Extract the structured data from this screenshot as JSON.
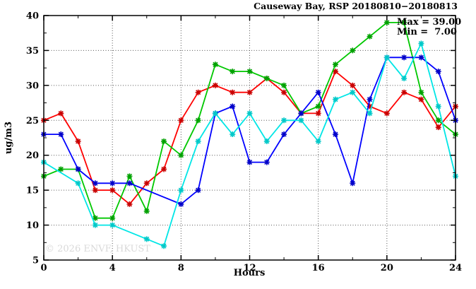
{
  "chart_data": {
    "type": "line",
    "title": "Causeway Bay, RSP 20180810−20180813",
    "annotations": {
      "max_label": "Max = 39.00",
      "min_label": "Min =  7.00",
      "max_value": 39.0,
      "min_value": 7.0
    },
    "watermark": "© 2026 ENVF, HKUST",
    "xlabel": "Hours",
    "ylabel": "ug/m3",
    "xlim": [
      0,
      24
    ],
    "ylim": [
      5,
      40
    ],
    "x_major_ticks": [
      0,
      4,
      8,
      12,
      16,
      20,
      24
    ],
    "x_minor_ticks": [
      2,
      6,
      10,
      14,
      18,
      22
    ],
    "y_major_ticks": [
      5,
      10,
      15,
      20,
      25,
      30,
      35,
      40
    ],
    "y_minor_ticks": [
      7.5,
      12.5,
      17.5,
      22.5,
      27.5,
      32.5,
      37.5
    ],
    "grid_x": [
      4,
      8,
      12,
      16,
      20
    ],
    "grid_y": [
      10,
      15,
      20,
      25,
      30,
      35
    ],
    "grid_on": true,
    "legend": "none",
    "x": [
      0,
      1,
      2,
      3,
      4,
      5,
      6,
      7,
      8,
      9,
      10,
      11,
      12,
      13,
      14,
      15,
      16,
      17,
      18,
      19,
      20,
      21,
      22,
      23,
      24
    ],
    "series": [
      {
        "name": "rsp-day-1-red",
        "line_color": "#ff0000",
        "marker_color": "#c80000",
        "values": [
          25,
          26,
          22,
          15,
          15,
          13,
          16,
          18,
          25,
          29,
          30,
          29,
          29,
          31,
          29,
          26,
          26,
          32,
          30,
          27,
          26,
          29,
          28,
          24,
          27
        ]
      },
      {
        "name": "rsp-day-2-green",
        "line_color": "#00c800",
        "marker_color": "#00a000",
        "values": [
          17,
          18,
          18,
          11,
          11,
          17,
          12,
          22,
          20,
          25,
          33,
          32,
          32,
          31,
          30,
          26,
          27,
          33,
          35,
          37,
          39,
          39,
          29,
          25,
          23
        ]
      },
      {
        "name": "rsp-day-3-blue",
        "line_color": "#0000ff",
        "marker_color": "#0000c8",
        "values": [
          23,
          23,
          18,
          16,
          16,
          16,
          null,
          null,
          13,
          15,
          26,
          27,
          19,
          19,
          23,
          26,
          29,
          23,
          16,
          28,
          34,
          34,
          34,
          32,
          25
        ]
      },
      {
        "name": "rsp-day-4-cyan",
        "line_color": "#00e6e6",
        "marker_color": "#00c8c8",
        "values": [
          19,
          null,
          16,
          10,
          10,
          null,
          8,
          7,
          15,
          22,
          26,
          23,
          26,
          22,
          25,
          25,
          22,
          28,
          29,
          26,
          34,
          31,
          36,
          27,
          17
        ]
      }
    ],
    "frame_color": "#000000",
    "grid_color": "#555555",
    "background_color": "#ffffff"
  }
}
